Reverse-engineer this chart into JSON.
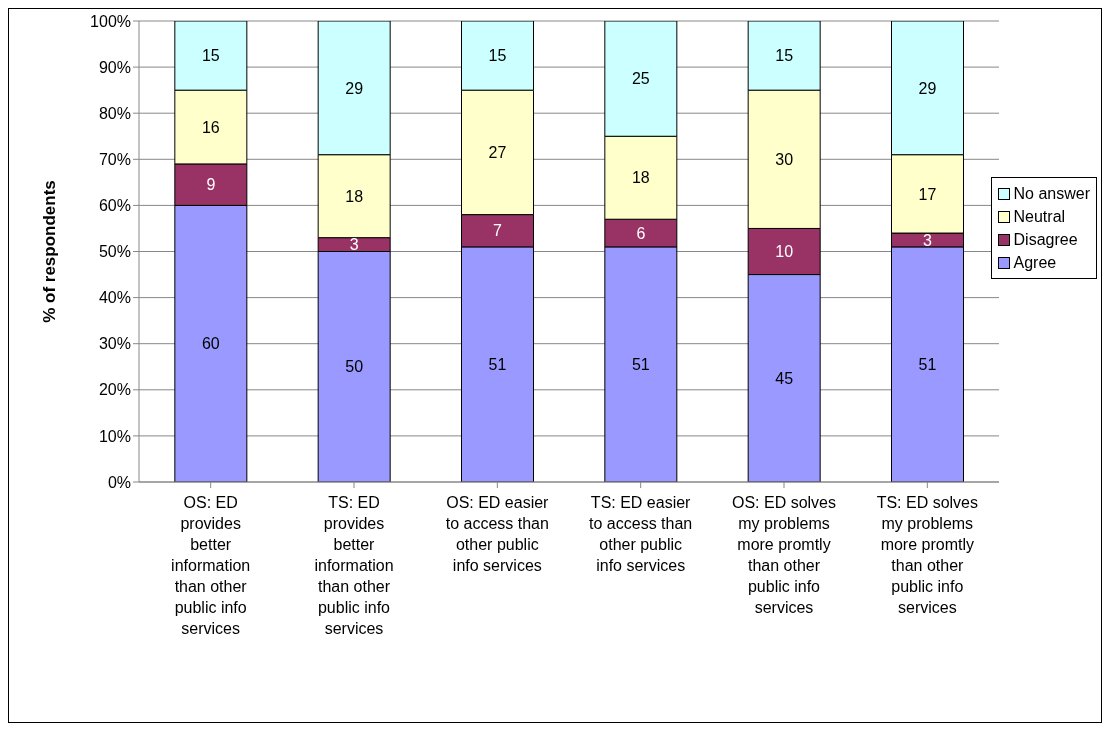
{
  "chart_data": {
    "type": "bar",
    "stacked": true,
    "ylabel": "% of respondents",
    "categories": [
      "OS: ED provides better information than other public info services",
      "TS: ED provides better information than other public info services",
      "OS: ED easier to access than other public info services",
      "TS: ED easier to access than other public info services",
      "OS: ED solves my problems more promtly than other public info services",
      "TS: ED solves my problems more promtly than other public info services"
    ],
    "series": [
      {
        "name": "Agree",
        "color": "#9999ff",
        "values": [
          60,
          50,
          51,
          51,
          45,
          51
        ]
      },
      {
        "name": "Disagree",
        "color": "#993366",
        "values": [
          9,
          3,
          7,
          6,
          10,
          3
        ]
      },
      {
        "name": "Neutral",
        "color": "#ffffcc",
        "values": [
          16,
          18,
          27,
          18,
          30,
          17
        ]
      },
      {
        "name": "No answer",
        "color": "#ccffff",
        "values": [
          15,
          29,
          15,
          25,
          15,
          29
        ]
      }
    ],
    "ylim": [
      0,
      100
    ],
    "yticks": [
      {
        "value": 0,
        "label": "0%"
      },
      {
        "value": 10,
        "label": "10%"
      },
      {
        "value": 20,
        "label": "20%"
      },
      {
        "value": 30,
        "label": "30%"
      },
      {
        "value": 40,
        "label": "40%"
      },
      {
        "value": 50,
        "label": "50%"
      },
      {
        "value": 60,
        "label": "60%"
      },
      {
        "value": 70,
        "label": "70%"
      },
      {
        "value": 80,
        "label": "80%"
      },
      {
        "value": 90,
        "label": "90%"
      },
      {
        "value": 100,
        "label": "100%"
      }
    ],
    "grid": "y",
    "legend": "right",
    "data_labels": true
  }
}
